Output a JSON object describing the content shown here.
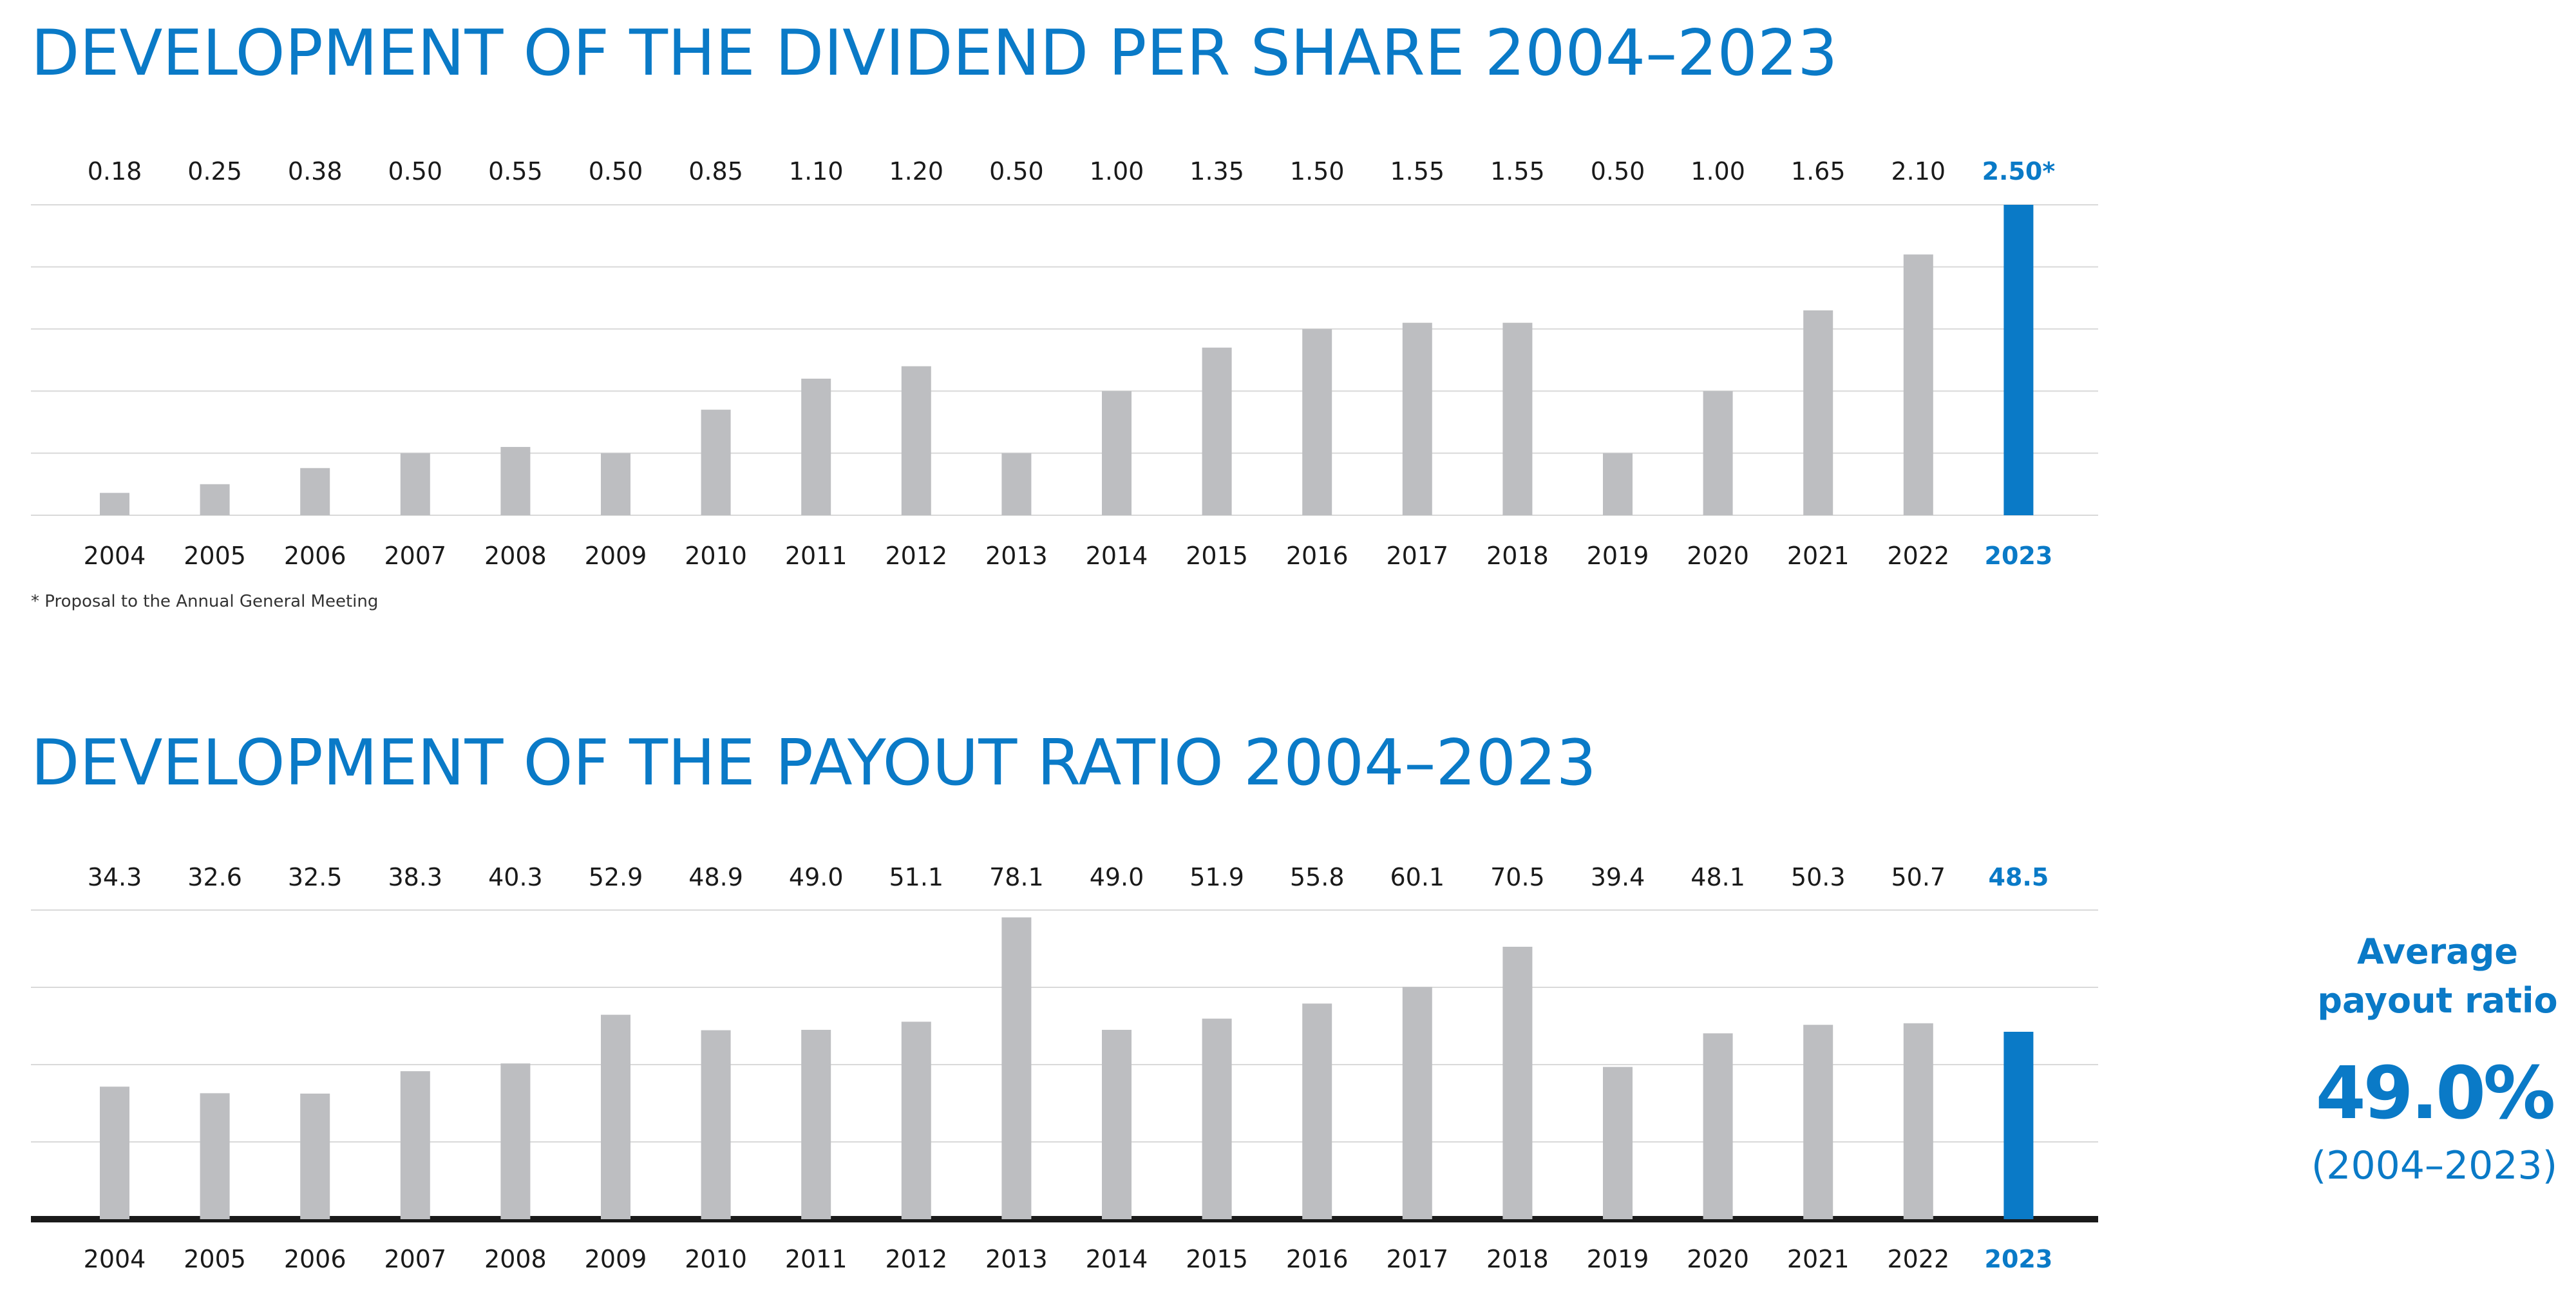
{
  "colors": {
    "accent": "#0a7ac7",
    "bar": "#bdbec1",
    "grid": "#d9d9d9",
    "text": "#1a1a1a"
  },
  "chart_data": [
    {
      "type": "bar",
      "title": "DEVELOPMENT OF THE DIVIDEND PER SHARE 2004–2023",
      "categories": [
        "2004",
        "2005",
        "2006",
        "2007",
        "2008",
        "2009",
        "2010",
        "2011",
        "2012",
        "2013",
        "2014",
        "2015",
        "2016",
        "2017",
        "2018",
        "2019",
        "2020",
        "2021",
        "2022",
        "2023"
      ],
      "values": [
        0.18,
        0.25,
        0.38,
        0.5,
        0.55,
        0.5,
        0.85,
        1.1,
        1.2,
        0.5,
        1.0,
        1.35,
        1.5,
        1.55,
        1.55,
        0.5,
        1.0,
        1.65,
        2.1,
        2.5
      ],
      "value_labels": [
        "0.18",
        "0.25",
        "0.38",
        "0.50",
        "0.55",
        "0.50",
        "0.85",
        "1.10",
        "1.20",
        "0.50",
        "1.00",
        "1.35",
        "1.50",
        "1.55",
        "1.55",
        "0.50",
        "1.00",
        "1.65",
        "2.10",
        "2.50*"
      ],
      "highlight_index": 19,
      "ylim": [
        0,
        2.5
      ],
      "grid": true,
      "gridline_step": 0.5,
      "footnote": "* Proposal to the Annual General Meeting"
    },
    {
      "type": "bar",
      "title": "DEVELOPMENT OF THE PAYOUT RATIO 2004–2023",
      "categories": [
        "2004",
        "2005",
        "2006",
        "2007",
        "2008",
        "2009",
        "2010",
        "2011",
        "2012",
        "2013",
        "2014",
        "2015",
        "2016",
        "2017",
        "2018",
        "2019",
        "2020",
        "2021",
        "2022",
        "2023"
      ],
      "values": [
        34.3,
        32.6,
        32.5,
        38.3,
        40.3,
        52.9,
        48.9,
        49.0,
        51.1,
        78.1,
        49.0,
        51.9,
        55.8,
        60.1,
        70.5,
        39.4,
        48.1,
        50.3,
        50.7,
        48.5
      ],
      "value_labels": [
        "34.3",
        "32.6",
        "32.5",
        "38.3",
        "40.3",
        "52.9",
        "48.9",
        "49.0",
        "51.1",
        "78.1",
        "49.0",
        "51.9",
        "55.8",
        "60.1",
        "70.5",
        "39.4",
        "48.1",
        "50.3",
        "50.7",
        "48.5"
      ],
      "highlight_index": 19,
      "ylim": [
        0,
        80
      ],
      "grid": true,
      "gridline_step": 20
    }
  ],
  "average_box": {
    "heading_line1": "Average",
    "heading_line2": "payout ratio",
    "value": "49.0%",
    "range": "(2004–2023)"
  }
}
